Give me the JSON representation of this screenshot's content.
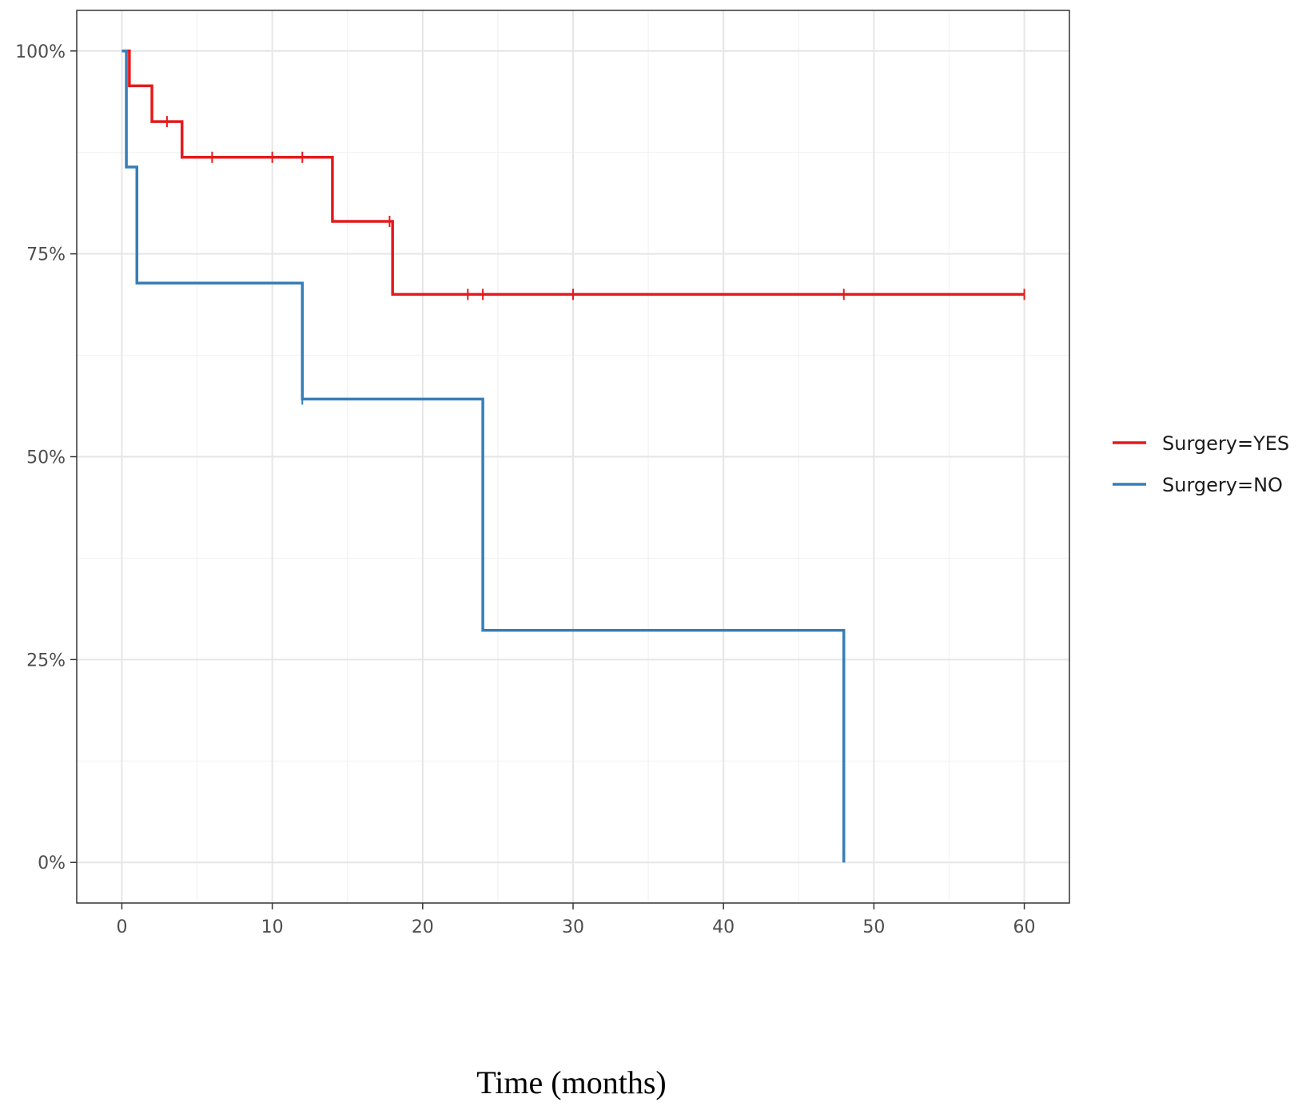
{
  "chart_data": {
    "type": "line",
    "subtype": "step",
    "title": "",
    "xlabel": "Time (months)",
    "ylabel": "",
    "xlim": [
      -3,
      63
    ],
    "ylim": [
      -0.05,
      1.05
    ],
    "x_ticks": [
      0,
      10,
      20,
      30,
      40,
      50,
      60
    ],
    "x_tick_labels": [
      "0",
      "10",
      "20",
      "30",
      "40",
      "50",
      "60"
    ],
    "y_ticks": [
      0,
      0.25,
      0.5,
      0.75,
      1.0
    ],
    "y_tick_labels": [
      "0%",
      "25%",
      "50%",
      "75%",
      "100%"
    ],
    "grid": true,
    "legend_position": "right",
    "series": [
      {
        "name": "Surgery=YES",
        "color": "#e41a1c",
        "steps": [
          [
            0,
            1.0
          ],
          [
            0.5,
            0.957
          ],
          [
            2,
            0.913
          ],
          [
            4,
            0.869
          ],
          [
            14,
            0.79
          ],
          [
            18,
            0.7
          ],
          [
            60,
            0.7
          ]
        ],
        "censored": [
          [
            3,
            0.913
          ],
          [
            6,
            0.869
          ],
          [
            10,
            0.869
          ],
          [
            12,
            0.869
          ],
          [
            17.8,
            0.79
          ],
          [
            23,
            0.7
          ],
          [
            24,
            0.7
          ],
          [
            30,
            0.7
          ],
          [
            48,
            0.7
          ],
          [
            60,
            0.7
          ]
        ]
      },
      {
        "name": "Surgery=NO",
        "color": "#377eb8",
        "steps": [
          [
            0,
            1.0
          ],
          [
            0.3,
            0.857
          ],
          [
            1,
            0.714
          ],
          [
            12,
            0.571
          ],
          [
            24,
            0.286
          ],
          [
            48,
            0.0
          ]
        ],
        "censored": [
          [
            12,
            0.571
          ]
        ]
      }
    ]
  }
}
